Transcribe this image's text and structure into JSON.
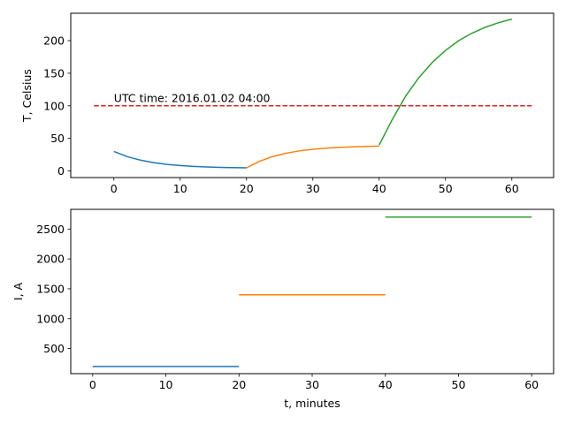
{
  "chart_data": [
    {
      "type": "line",
      "title": "",
      "xlabel": "",
      "ylabel": "T, Celsius",
      "xlim": [
        -6.5,
        66.3
      ],
      "ylim": [
        -10,
        242
      ],
      "xticks": [
        0,
        10,
        20,
        30,
        40,
        50,
        60
      ],
      "yticks": [
        0,
        50,
        100,
        150,
        200
      ],
      "grid": false,
      "annotation": {
        "text": "UTC time: 2016.01.02    04:00",
        "x": 0,
        "y": 106
      },
      "series": [
        {
          "color": "#1f77b4",
          "x": [
            0,
            2,
            4,
            6,
            8,
            10,
            12,
            14,
            16,
            18,
            20
          ],
          "y": [
            30,
            22.1,
            16.7,
            12.9,
            10.2,
            8.4,
            7.1,
            6.2,
            5.6,
            5.2,
            4.9
          ]
        },
        {
          "color": "#ff7f0e",
          "x": [
            20,
            22,
            24,
            26,
            28,
            30,
            32,
            34,
            36,
            38,
            40
          ],
          "y": [
            4.9,
            15.2,
            22.4,
            27.4,
            30.9,
            33.4,
            35.1,
            36.3,
            37.1,
            37.7,
            38.2
          ]
        },
        {
          "color": "#2ca02c",
          "x": [
            40,
            42,
            44,
            46,
            48,
            50,
            52,
            54,
            56,
            58,
            60
          ],
          "y": [
            40,
            79.5,
            115,
            143.5,
            166.5,
            185,
            200,
            211.5,
            220.5,
            227.5,
            233
          ]
        },
        {
          "color": "#d62728",
          "style": "dashed",
          "x": [
            -3,
            63
          ],
          "y": [
            100,
            100
          ]
        }
      ]
    },
    {
      "type": "line",
      "title": "",
      "xlabel": "t, minutes",
      "ylabel": "I, A",
      "xlim": [
        -3,
        63
      ],
      "ylim": [
        80,
        2830
      ],
      "xticks": [
        0,
        10,
        20,
        30,
        40,
        50,
        60
      ],
      "yticks": [
        500,
        1000,
        1500,
        2000,
        2500
      ],
      "grid": false,
      "series": [
        {
          "color": "#1f77b4",
          "x": [
            0,
            20
          ],
          "y": [
            200,
            200
          ]
        },
        {
          "color": "#ff7f0e",
          "x": [
            20,
            40
          ],
          "y": [
            1400,
            1400
          ]
        },
        {
          "color": "#2ca02c",
          "x": [
            40,
            60
          ],
          "y": [
            2700,
            2700
          ]
        }
      ]
    }
  ]
}
